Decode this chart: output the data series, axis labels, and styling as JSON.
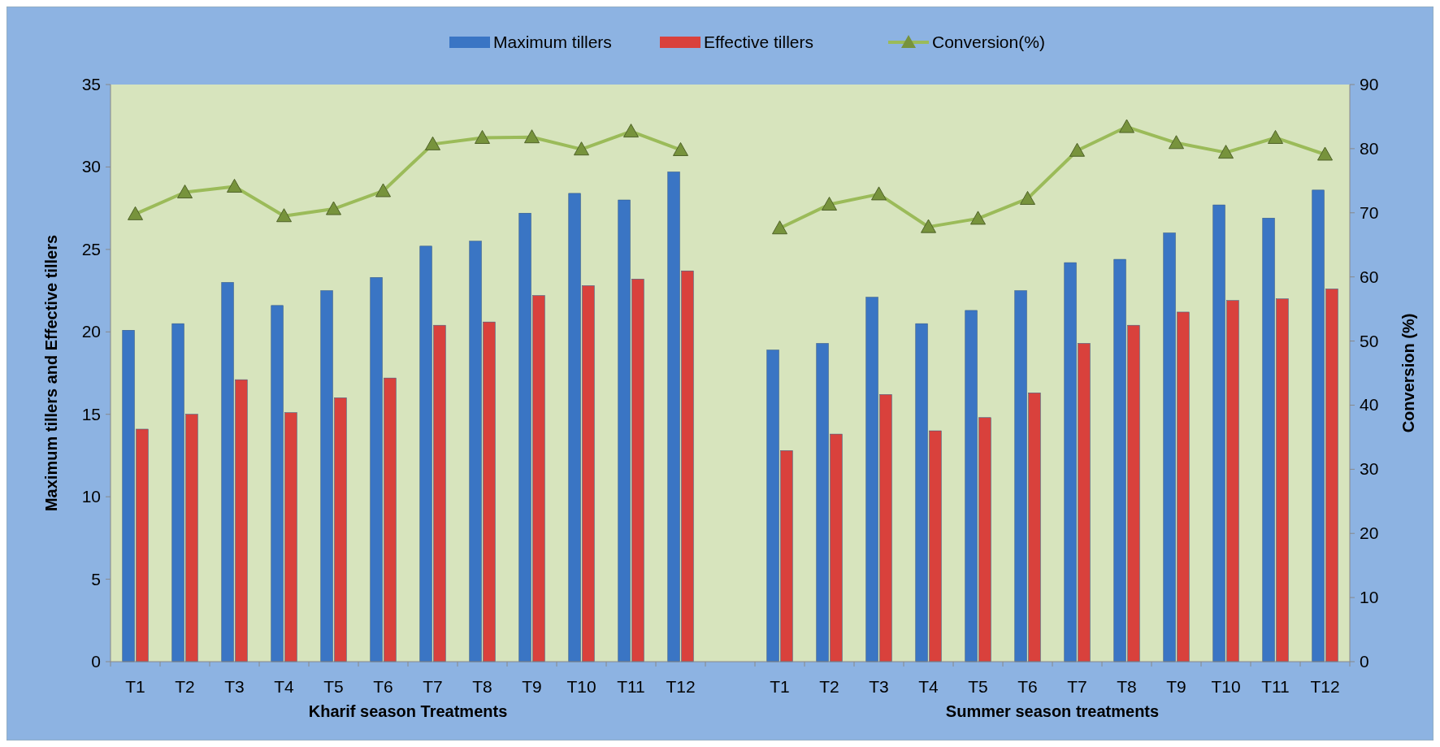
{
  "chart_data": {
    "type": "bar",
    "categories": [
      "T1",
      "T2",
      "T3",
      "T4",
      "T5",
      "T6",
      "T7",
      "T8",
      "T9",
      "T10",
      "T11",
      "T12",
      null,
      "T1",
      "T2",
      "T3",
      "T4",
      "T5",
      "T6",
      "T7",
      "T8",
      "T9",
      "T10",
      "T11",
      "T12"
    ],
    "series": [
      {
        "name": "Maximum tillers",
        "color": "#3a75c4",
        "values": [
          20.1,
          20.5,
          23.0,
          21.6,
          22.5,
          23.3,
          25.2,
          25.5,
          27.2,
          28.4,
          28.0,
          29.7,
          null,
          18.9,
          19.3,
          22.1,
          20.5,
          21.3,
          22.5,
          24.2,
          24.4,
          26.0,
          27.7,
          26.9,
          28.6
        ]
      },
      {
        "name": "Effective tillers",
        "color": "#d9413c",
        "values": [
          14.1,
          15.0,
          17.1,
          15.1,
          16.0,
          17.2,
          20.4,
          20.6,
          22.2,
          22.8,
          23.2,
          23.7,
          null,
          12.8,
          13.8,
          16.2,
          14.0,
          14.8,
          16.3,
          19.3,
          20.4,
          21.2,
          21.9,
          22.0,
          22.6
        ]
      },
      {
        "name": "Conversion(%)",
        "type": "line",
        "axis": "y2",
        "color": "#9bbb59",
        "marker": "triangle",
        "values": [
          69.8,
          73.2,
          74.1,
          69.5,
          70.6,
          73.4,
          80.7,
          81.7,
          81.8,
          79.9,
          82.7,
          79.8,
          null,
          67.6,
          71.3,
          72.9,
          67.8,
          69.1,
          72.2,
          79.7,
          83.4,
          80.9,
          79.4,
          81.7,
          79.1
        ]
      }
    ],
    "ylabel": "Maximum tillers and Effective tillers",
    "y2label": "Conversion (%)",
    "ylim": [
      0,
      35
    ],
    "yticks": [
      0,
      5,
      10,
      15,
      20,
      25,
      30,
      35
    ],
    "y2lim": [
      0,
      90
    ],
    "y2ticks": [
      0,
      10,
      20,
      30,
      40,
      50,
      60,
      70,
      80,
      90
    ],
    "annotations": [
      "Kharif season Treatments",
      "Summer season treatments"
    ],
    "legend": "top",
    "grid": false
  }
}
